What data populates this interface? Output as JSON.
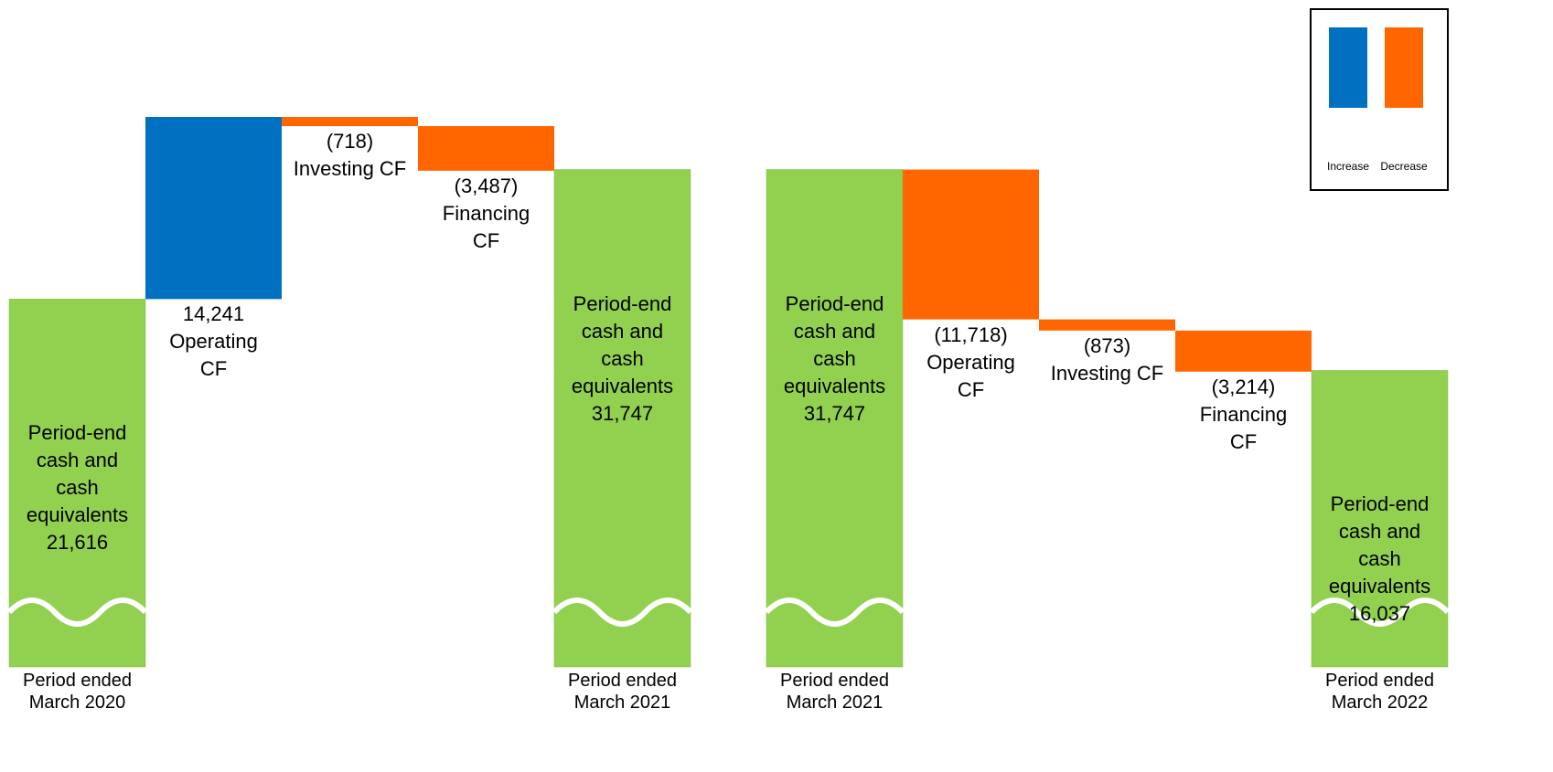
{
  "chart_data": [
    {
      "type": "waterfall",
      "categories": [
        "Period-end cash and cash equivalents",
        "Operating CF",
        "Investing CF",
        "Financing CF",
        "Period-end cash and cash equivalents"
      ],
      "values": [
        21616,
        14241,
        -718,
        -3487,
        31747
      ],
      "value_labels": [
        "21,616",
        "14,241",
        "(718)",
        "(3,487)",
        "31,747"
      ],
      "measures": [
        "total",
        "relative",
        "relative",
        "relative",
        "total"
      ],
      "period_labels": [
        "Period ended March 2020",
        null,
        null,
        null,
        "Period ended March 2021"
      ]
    },
    {
      "type": "waterfall",
      "categories": [
        "Period-end cash and cash equivalents",
        "Operating CF",
        "Investing CF",
        "Financing CF",
        "Period-end cash and cash equivalents"
      ],
      "values": [
        31747,
        -11718,
        -873,
        -3214,
        16037
      ],
      "value_labels": [
        "31,747",
        "(11,718)",
        "(873)",
        "(3,214)",
        "16,037"
      ],
      "measures": [
        "total",
        "relative",
        "relative",
        "relative",
        "total"
      ],
      "period_labels": [
        "Period ended March 2021",
        null,
        null,
        null,
        "Period ended March 2022"
      ]
    }
  ],
  "colors": {
    "increase": "#0070c0",
    "decrease": "#ff6600",
    "total": "#92d050"
  },
  "legend": [
    {
      "name": "Increase",
      "color": "#0070c0"
    },
    {
      "name": "Decrease",
      "color": "#ff6600"
    }
  ]
}
